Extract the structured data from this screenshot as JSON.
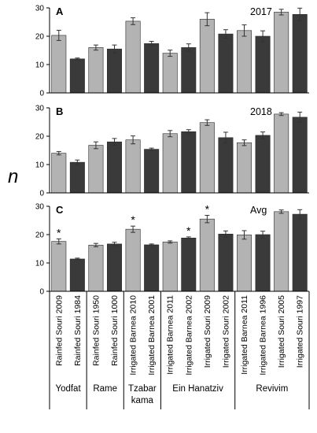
{
  "chart_data": {
    "type": "bar",
    "ylabel": "n",
    "ylim": [
      0,
      30
    ],
    "yticks": [
      0,
      10,
      20,
      30
    ],
    "categories": [
      "Rainfed Souri 2009",
      "Rainfed Souri 1984",
      "Rainfed Souri 1950",
      "Rainfed Souri 1000",
      "Irrigated Barnea 2010",
      "Irrigated Barnea 2001",
      "Irrigated Barnea 2011",
      "Irrigated Barnea 2002",
      "Irrigated Souri 2009",
      "Irrigated Souri 2002",
      "Irrigated Barnea 2011",
      "Irrigated Barnea 1996",
      "Irrigated Souri 2005",
      "Irrigated Souri 1997"
    ],
    "bar_colors": [
      "light",
      "dark",
      "light",
      "dark",
      "light",
      "dark",
      "light",
      "dark",
      "light",
      "dark",
      "light",
      "dark",
      "light",
      "dark"
    ],
    "colors": {
      "light": "#b3b3b3",
      "dark": "#3a3a3a",
      "axis": "#000000"
    },
    "groups": [
      {
        "name": "Yodfat",
        "start": 0,
        "end": 1
      },
      {
        "name": "Rame",
        "start": 2,
        "end": 3
      },
      {
        "name": "Tzabar kama",
        "start": 4,
        "end": 5
      },
      {
        "name": "Ein Hanatziv",
        "start": 6,
        "end": 9
      },
      {
        "name": "Revivim",
        "start": 10,
        "end": 13
      }
    ],
    "panels": [
      {
        "letter": "A",
        "title": "2017",
        "values": [
          20.3,
          12.0,
          16.0,
          15.5,
          25.3,
          17.4,
          14.0,
          16.0,
          26.0,
          20.8,
          22.0,
          20.0,
          28.5,
          27.7
        ],
        "errors": [
          1.8,
          0.3,
          0.9,
          1.4,
          1.2,
          0.8,
          1.1,
          1.3,
          2.3,
          1.5,
          2.0,
          1.9,
          1.0,
          2.2
        ],
        "stars": []
      },
      {
        "letter": "B",
        "title": "2018",
        "values": [
          14.0,
          10.8,
          16.8,
          18.0,
          18.7,
          15.4,
          20.9,
          21.6,
          24.8,
          19.5,
          17.7,
          20.3,
          27.8,
          26.7
        ],
        "errors": [
          0.6,
          0.8,
          1.2,
          1.2,
          1.4,
          0.4,
          1.1,
          0.7,
          1.0,
          1.9,
          1.0,
          1.2,
          0.5,
          1.8
        ],
        "stars": []
      },
      {
        "letter": "C",
        "title": "Avg",
        "values": [
          17.6,
          11.4,
          16.3,
          16.7,
          21.9,
          16.4,
          17.4,
          18.8,
          25.5,
          20.2,
          19.9,
          20.0,
          28.1,
          27.2
        ],
        "errors": [
          0.9,
          0.3,
          0.6,
          0.6,
          1.1,
          0.3,
          0.4,
          0.4,
          1.3,
          1.1,
          1.5,
          1.2,
          0.6,
          1.6
        ],
        "stars": [
          0,
          4,
          7,
          8
        ]
      }
    ],
    "star_symbol": "*",
    "grid": false,
    "legend": "none"
  }
}
